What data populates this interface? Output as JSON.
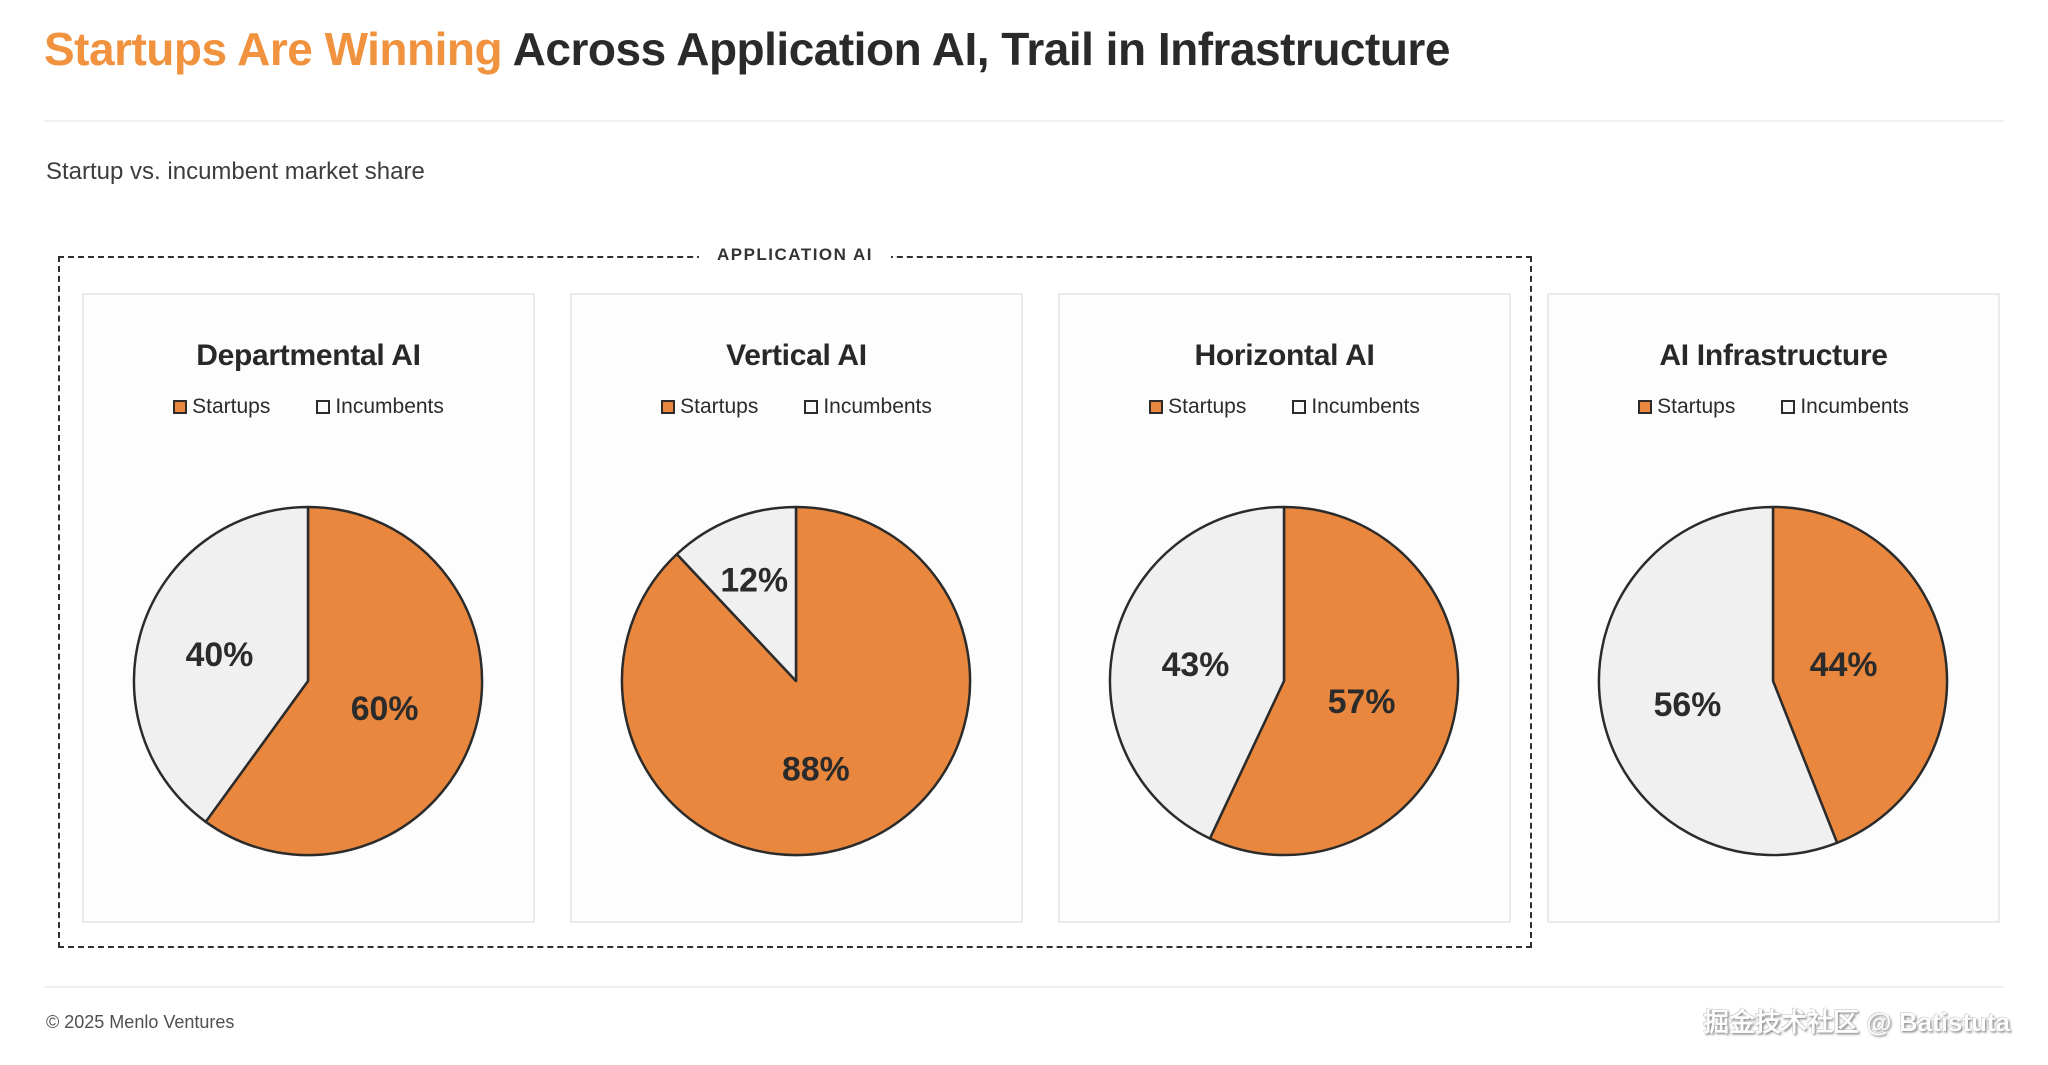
{
  "page": {
    "title_highlight": "Startups Are Winning",
    "title_rest": " Across Application AI, Trail in Infrastructure",
    "subtitle": "Startup vs. incumbent market share",
    "group_label": "APPLICATION AI",
    "footer_left": "© 2025 Menlo Ventures",
    "watermark": "掘金技术社区 @ Batistuta"
  },
  "colors": {
    "title_orange": "#F0923E",
    "startups_orange": "#E8873D",
    "incumbents_gray": "#F0F0F0",
    "slice_stroke": "#2B2B2B",
    "label_dark": "#2B2B2B"
  },
  "legend": {
    "startups": "Startups",
    "incumbents": "Incumbents"
  },
  "chart_data": [
    {
      "type": "pie",
      "title": "Departmental AI",
      "group": "Application AI",
      "categories": [
        "Startups",
        "Incumbents"
      ],
      "values": [
        60,
        40
      ],
      "labels": [
        "60%",
        "40%"
      ],
      "colors": [
        "#E8873D",
        "#F0F0F0"
      ],
      "legend_position": "top",
      "start_angle_deg": 0,
      "direction": "clockwise"
    },
    {
      "type": "pie",
      "title": "Vertical AI",
      "group": "Application AI",
      "categories": [
        "Startups",
        "Incumbents"
      ],
      "values": [
        88,
        12
      ],
      "labels": [
        "88%",
        "12%"
      ],
      "colors": [
        "#E8873D",
        "#F0F0F0"
      ],
      "legend_position": "top",
      "start_angle_deg": 0,
      "direction": "clockwise"
    },
    {
      "type": "pie",
      "title": "Horizontal AI",
      "group": "Application AI",
      "categories": [
        "Startups",
        "Incumbents"
      ],
      "values": [
        57,
        43
      ],
      "labels": [
        "57%",
        "43%"
      ],
      "colors": [
        "#E8873D",
        "#F0F0F0"
      ],
      "legend_position": "top",
      "start_angle_deg": 0,
      "direction": "clockwise"
    },
    {
      "type": "pie",
      "title": "AI Infrastructure",
      "group": "Infrastructure",
      "categories": [
        "Startups",
        "Incumbents"
      ],
      "values": [
        44,
        56
      ],
      "labels": [
        "44%",
        "56%"
      ],
      "colors": [
        "#E8873D",
        "#F0F0F0"
      ],
      "legend_position": "top",
      "start_angle_deg": 0,
      "direction": "clockwise"
    }
  ]
}
